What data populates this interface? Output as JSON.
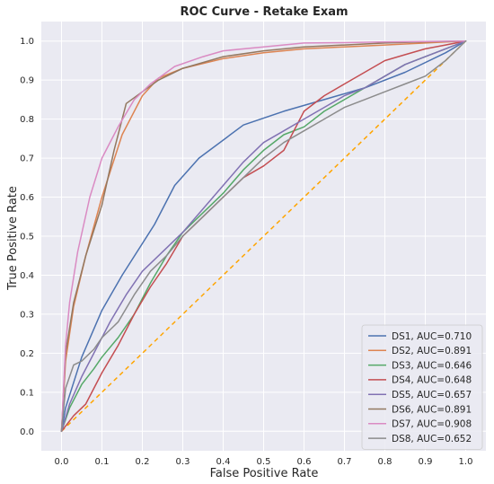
{
  "chart_data": {
    "type": "line",
    "title": "ROC Curve - Retake Exam",
    "xlabel": "False Positive Rate",
    "ylabel": "True Positive Rate",
    "xlim": [
      -0.05,
      1.05
    ],
    "ylim": [
      -0.05,
      1.05
    ],
    "xticks": [
      "0.0",
      "0.1",
      "0.2",
      "0.3",
      "0.4",
      "0.5",
      "0.6",
      "0.7",
      "0.8",
      "0.9",
      "1.0"
    ],
    "yticks": [
      "0.0",
      "0.1",
      "0.2",
      "0.3",
      "0.4",
      "0.5",
      "0.6",
      "0.7",
      "0.8",
      "0.9",
      "1.0"
    ],
    "grid": true,
    "background": "#eaeaf2",
    "legend_position": "lower-right",
    "baseline": {
      "color": "#ffa500",
      "style": "dashed",
      "x": [
        0,
        1
      ],
      "y": [
        0,
        1
      ]
    },
    "series": [
      {
        "name": "DS1, AUC=0.710",
        "color": "#4c72b0",
        "x": [
          0,
          0.01,
          0.05,
          0.1,
          0.15,
          0.23,
          0.28,
          0.34,
          0.45,
          0.55,
          0.65,
          0.75,
          0.85,
          0.95,
          1.0
        ],
        "y": [
          0,
          0.06,
          0.19,
          0.31,
          0.4,
          0.53,
          0.63,
          0.7,
          0.785,
          0.82,
          0.85,
          0.88,
          0.92,
          0.97,
          1.0
        ]
      },
      {
        "name": "DS2, AUC=0.891",
        "color": "#dd8452",
        "x": [
          0,
          0.01,
          0.03,
          0.06,
          0.1,
          0.15,
          0.2,
          0.24,
          0.3,
          0.4,
          0.5,
          0.6,
          0.7,
          0.8,
          0.9,
          1.0
        ],
        "y": [
          0,
          0.18,
          0.32,
          0.45,
          0.6,
          0.76,
          0.86,
          0.905,
          0.93,
          0.955,
          0.97,
          0.98,
          0.985,
          0.99,
          0.995,
          1.0
        ]
      },
      {
        "name": "DS3, AUC=0.646",
        "color": "#55a868",
        "x": [
          0,
          0.02,
          0.05,
          0.08,
          0.1,
          0.14,
          0.18,
          0.22,
          0.26,
          0.3,
          0.35,
          0.4,
          0.45,
          0.5,
          0.55,
          0.6,
          0.65,
          0.7,
          0.75,
          0.8,
          0.85,
          0.9,
          0.95,
          1.0
        ],
        "y": [
          0,
          0.06,
          0.12,
          0.16,
          0.19,
          0.24,
          0.3,
          0.38,
          0.45,
          0.51,
          0.56,
          0.61,
          0.67,
          0.72,
          0.76,
          0.78,
          0.82,
          0.85,
          0.88,
          0.91,
          0.94,
          0.96,
          0.98,
          1.0
        ]
      },
      {
        "name": "DS4, AUC=0.648",
        "color": "#c44e52",
        "x": [
          0,
          0.03,
          0.06,
          0.1,
          0.14,
          0.18,
          0.22,
          0.26,
          0.3,
          0.35,
          0.4,
          0.45,
          0.5,
          0.55,
          0.6,
          0.65,
          0.7,
          0.75,
          0.8,
          0.85,
          0.9,
          0.95,
          1.0
        ],
        "y": [
          0,
          0.04,
          0.07,
          0.15,
          0.22,
          0.3,
          0.37,
          0.43,
          0.5,
          0.55,
          0.6,
          0.65,
          0.68,
          0.72,
          0.82,
          0.86,
          0.89,
          0.92,
          0.95,
          0.965,
          0.98,
          0.99,
          1.0
        ]
      },
      {
        "name": "DS5, AUC=0.657",
        "color": "#8172b3",
        "x": [
          0,
          0.02,
          0.05,
          0.08,
          0.12,
          0.16,
          0.2,
          0.25,
          0.3,
          0.35,
          0.4,
          0.45,
          0.5,
          0.55,
          0.6,
          0.65,
          0.7,
          0.75,
          0.8,
          0.85,
          0.9,
          0.95,
          1.0
        ],
        "y": [
          0,
          0.07,
          0.14,
          0.2,
          0.28,
          0.35,
          0.41,
          0.46,
          0.51,
          0.57,
          0.63,
          0.69,
          0.74,
          0.77,
          0.8,
          0.83,
          0.86,
          0.88,
          0.91,
          0.94,
          0.96,
          0.98,
          1.0
        ]
      },
      {
        "name": "DS6, AUC=0.891",
        "color": "#937860",
        "x": [
          0,
          0.01,
          0.03,
          0.06,
          0.1,
          0.13,
          0.16,
          0.2,
          0.24,
          0.3,
          0.4,
          0.5,
          0.6,
          0.7,
          0.8,
          0.9,
          1.0
        ],
        "y": [
          0,
          0.2,
          0.33,
          0.45,
          0.58,
          0.72,
          0.84,
          0.87,
          0.9,
          0.93,
          0.96,
          0.975,
          0.985,
          0.99,
          0.995,
          0.998,
          1.0
        ]
      },
      {
        "name": "DS7, AUC=0.908",
        "color": "#da8bc3",
        "x": [
          0,
          0.01,
          0.02,
          0.04,
          0.07,
          0.1,
          0.14,
          0.18,
          0.22,
          0.28,
          0.35,
          0.4,
          0.5,
          0.6,
          0.7,
          0.8,
          0.9,
          1.0
        ],
        "y": [
          0,
          0.22,
          0.33,
          0.46,
          0.6,
          0.7,
          0.78,
          0.85,
          0.89,
          0.935,
          0.96,
          0.975,
          0.985,
          0.995,
          0.996,
          0.998,
          0.999,
          1.0
        ]
      },
      {
        "name": "DS8, AUC=0.652",
        "color": "#8c8c8c",
        "x": [
          0,
          0.01,
          0.03,
          0.05,
          0.08,
          0.1,
          0.14,
          0.18,
          0.22,
          0.26,
          0.3,
          0.35,
          0.4,
          0.45,
          0.5,
          0.55,
          0.6,
          0.65,
          0.7,
          0.75,
          0.8,
          0.85,
          0.9,
          0.95,
          1.0
        ],
        "y": [
          0,
          0.11,
          0.17,
          0.18,
          0.21,
          0.24,
          0.28,
          0.35,
          0.41,
          0.45,
          0.5,
          0.55,
          0.6,
          0.65,
          0.7,
          0.74,
          0.77,
          0.8,
          0.83,
          0.85,
          0.87,
          0.89,
          0.91,
          0.95,
          1.0
        ]
      }
    ]
  }
}
